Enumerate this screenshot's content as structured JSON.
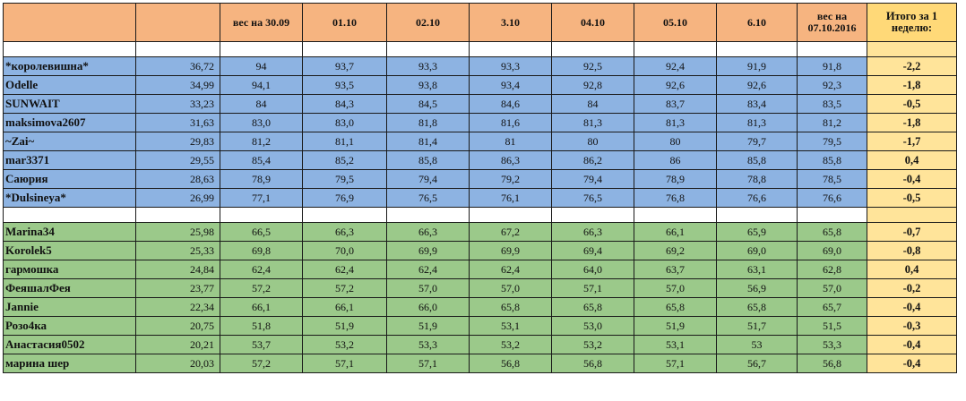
{
  "header": {
    "name": "",
    "start": "",
    "dates": [
      "вес на 30.09",
      "01.10",
      "02.10",
      "3.10",
      "04.10",
      "05.10",
      "6.10",
      "вес на 07.10.2016"
    ],
    "total": "Итого за 1 неделю:"
  },
  "blue_rows": [
    {
      "name": "*королевишна*",
      "start": "36,72",
      "values": [
        "94",
        "93,7",
        "93,3",
        "93,3",
        "92,5",
        "92,4",
        "91,9",
        "91,8"
      ],
      "total": "-2,2"
    },
    {
      "name": "Odelle",
      "start": "34,99",
      "values": [
        "94,1",
        "93,5",
        "93,8",
        "93,4",
        "92,8",
        "92,6",
        "92,6",
        "92,3"
      ],
      "total": "-1,8"
    },
    {
      "name": "SUNWAIT",
      "start": "33,23",
      "values": [
        "84",
        "84,3",
        "84,5",
        "84,6",
        "84",
        "83,7",
        "83,4",
        "83,5"
      ],
      "total": "-0,5"
    },
    {
      "name": "maksimova2607",
      "start": "31,63",
      "values": [
        "83,0",
        "83,0",
        "81,8",
        "81,6",
        "81,3",
        "81,3",
        "81,3",
        "81,2"
      ],
      "total": "-1,8"
    },
    {
      "name": "~Zai~",
      "start": "29,83",
      "values": [
        "81,2",
        "81,1",
        "81,4",
        "81",
        "80",
        "80",
        "79,7",
        "79,5"
      ],
      "total": "-1,7"
    },
    {
      "name": "mar3371",
      "start": "29,55",
      "values": [
        "85,4",
        "85,2",
        "85,8",
        "86,3",
        "86,2",
        "86",
        "85,8",
        "85,8"
      ],
      "total": "0,4"
    },
    {
      "name": "Саюрия",
      "start": "28,63",
      "values": [
        "78,9",
        "79,5",
        "79,4",
        "79,2",
        "79,4",
        "78,9",
        "78,8",
        "78,5"
      ],
      "total": "-0,4"
    },
    {
      "name": "*Dulsineya*",
      "start": "26,99",
      "values": [
        "77,1",
        "76,9",
        "76,5",
        "76,1",
        "76,5",
        "76,8",
        "76,6",
        "76,6"
      ],
      "total": "-0,5"
    }
  ],
  "green_rows": [
    {
      "name": "Marina34",
      "start": "25,98",
      "values": [
        "66,5",
        "66,3",
        "66,3",
        "67,2",
        "66,3",
        "66,1",
        "65,9",
        "65,8"
      ],
      "total": "-0,7"
    },
    {
      "name": "Korolek5",
      "start": "25,33",
      "values": [
        "69,8",
        "70,0",
        "69,9",
        "69,9",
        "69,4",
        "69,2",
        "69,0",
        "69,0"
      ],
      "total": "-0,8"
    },
    {
      "name": "гармошка",
      "start": "24,84",
      "values": [
        "62,4",
        "62,4",
        "62,4",
        "62,4",
        "64,0",
        "63,7",
        "63,1",
        "62,8"
      ],
      "total": "0,4"
    },
    {
      "name": "ФеяшалФея",
      "start": "23,77",
      "values": [
        "57,2",
        "57,2",
        "57,0",
        "57,0",
        "57,1",
        "57,0",
        "56,9",
        "57,0"
      ],
      "total": "-0,2"
    },
    {
      "name": "Jannie",
      "start": "22,34",
      "values": [
        "66,1",
        "66,1",
        "66,0",
        "65,8",
        "65,8",
        "65,8",
        "65,8",
        "65,7"
      ],
      "total": "-0,4"
    },
    {
      "name": "Розо4ка",
      "start": "20,75",
      "values": [
        "51,8",
        "51,9",
        "51,9",
        "53,1",
        "53,0",
        "51,9",
        "51,7",
        "51,5"
      ],
      "total": "-0,3"
    },
    {
      "name": "Анастасия0502",
      "start": "20,21",
      "values": [
        "53,7",
        "53,2",
        "53,3",
        "53,2",
        "53,2",
        "53,1",
        "53",
        "53,3"
      ],
      "total": "-0,4"
    },
    {
      "name": "марина шер",
      "start": "20,03",
      "values": [
        "57,2",
        "57,1",
        "57,1",
        "56,8",
        "56,8",
        "57,1",
        "56,7",
        "56,8"
      ],
      "total": "-0,4"
    }
  ],
  "colors": {
    "header": "#f6b480",
    "total": "#ffe49a",
    "blue": "#8db3e2",
    "green": "#9bc98a"
  }
}
